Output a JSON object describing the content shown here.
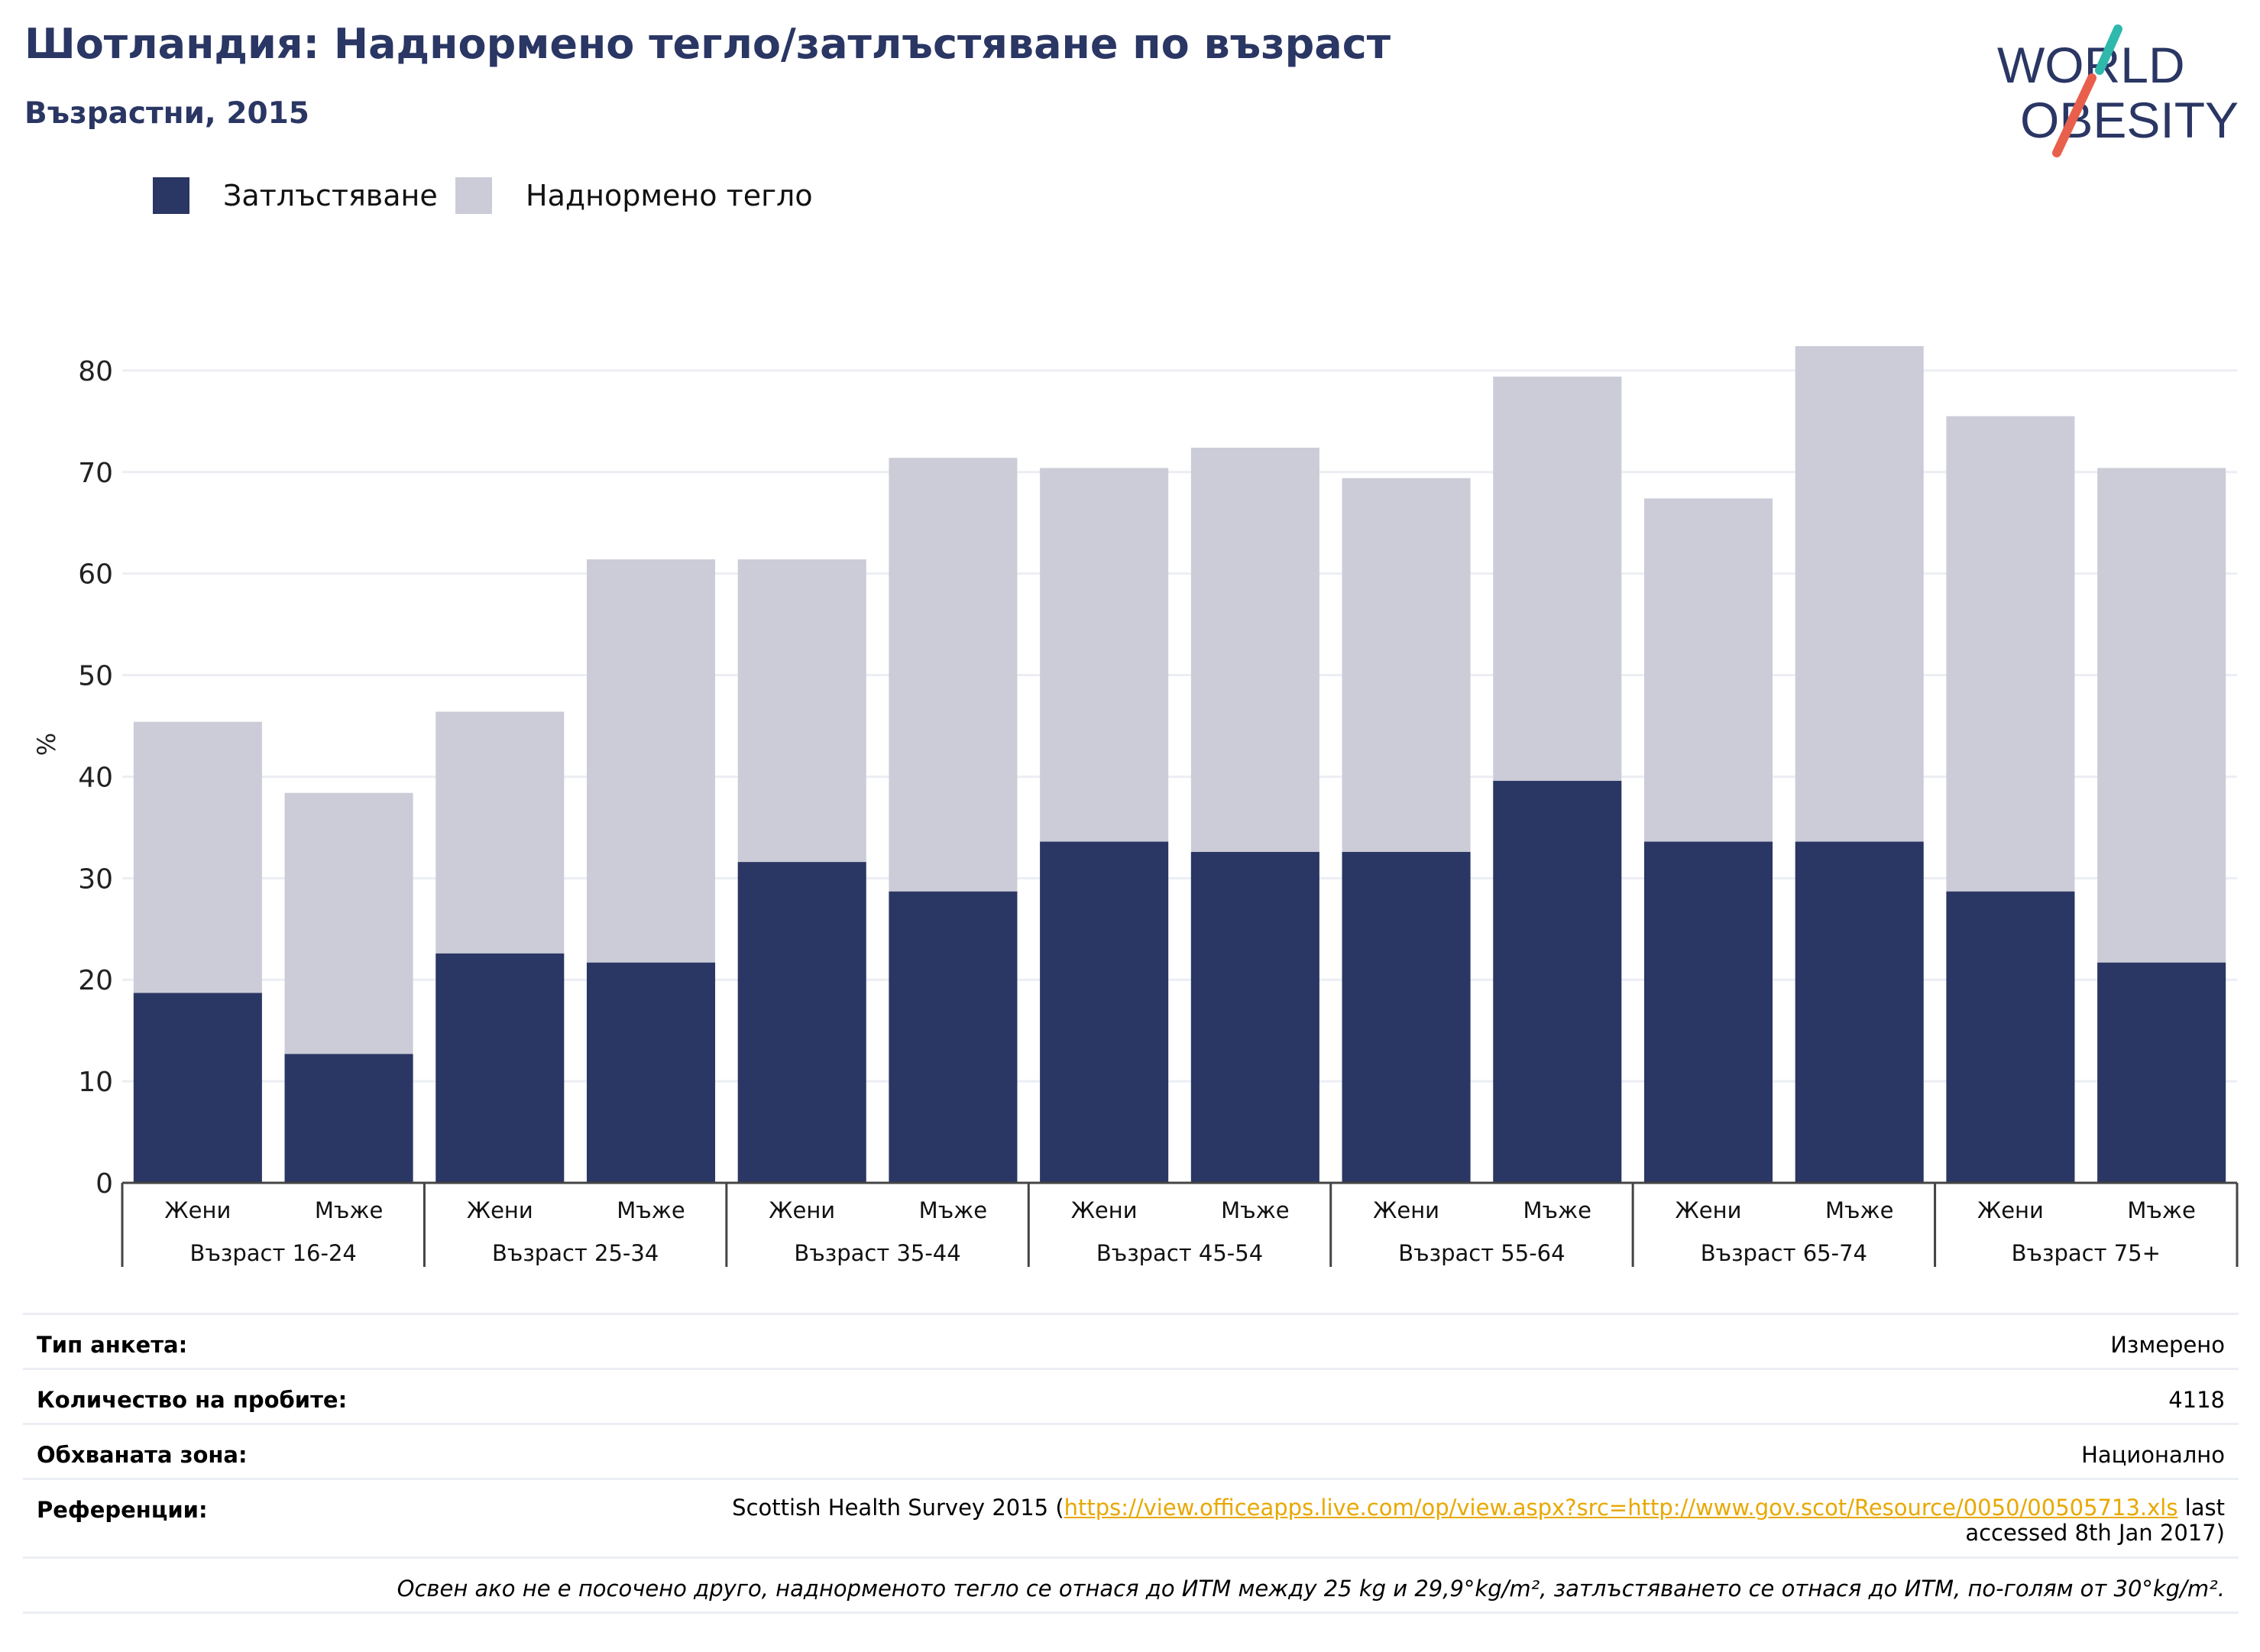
{
  "header": {
    "title": "Шотландия: Наднормено тегло/затлъстяване по възраст",
    "subtitle": "Възрастни, 2015"
  },
  "logo": {
    "line1": "WORLD",
    "line2": "OBESITY",
    "icon": "world-obesity-logo"
  },
  "colors": {
    "obesity": "#2a3663",
    "overweight": "#cbccd8",
    "title": "#2a3663",
    "link": "#e8a800",
    "logo_teal": "#2fb8ac",
    "logo_red": "#e8604c"
  },
  "chart_data": {
    "type": "bar",
    "stacked": true,
    "ylabel": "%",
    "ylim": [
      0,
      90
    ],
    "yticks": [
      0,
      10,
      20,
      30,
      40,
      50,
      60,
      70,
      80
    ],
    "grid": true,
    "legend_position": "top-left",
    "groups": [
      "Възраст 16-24",
      "Възраст 25-34",
      "Възраст 35-44",
      "Възраст 45-54",
      "Възраст 55-64",
      "Възраст 65-74",
      "Възраст 75+"
    ],
    "subcategories": [
      "Жени",
      "Мъже"
    ],
    "series": [
      {
        "name": "Затлъстяване",
        "values": [
          18.7,
          12.7,
          22.6,
          21.7,
          31.6,
          28.7,
          33.6,
          32.6,
          32.6,
          39.6,
          33.6,
          33.6,
          28.7,
          21.7
        ]
      },
      {
        "name": "Наднормено тегло",
        "values": [
          26.7,
          25.7,
          23.8,
          39.7,
          29.8,
          42.7,
          36.8,
          39.8,
          36.8,
          39.8,
          33.8,
          48.8,
          46.8,
          48.7
        ]
      }
    ]
  },
  "meta": {
    "survey_type_label": "Тип анкета:",
    "survey_type_value": "Измерено",
    "sample_label": "Количество на пробите:",
    "sample_value": "4118",
    "area_label": "Обхваната зона:",
    "area_value": "Национално",
    "refs_label": "Референции:",
    "refs_before": "Scottish Health Survey 2015 (",
    "refs_link": "https://view.officeapps.live.com/op/view.aspx?src=http://www.gov.scot/Resource/0050/00505713.xls",
    "refs_after": " last accessed 8th Jan 2017)",
    "note": "Освен ако не е посочено друго, наднорменото тегло се отнася до ИТМ между 25 kg и 29,9°kg/m², затлъстяването се отнася до ИТМ, по-голям от 30°kg/m²."
  }
}
